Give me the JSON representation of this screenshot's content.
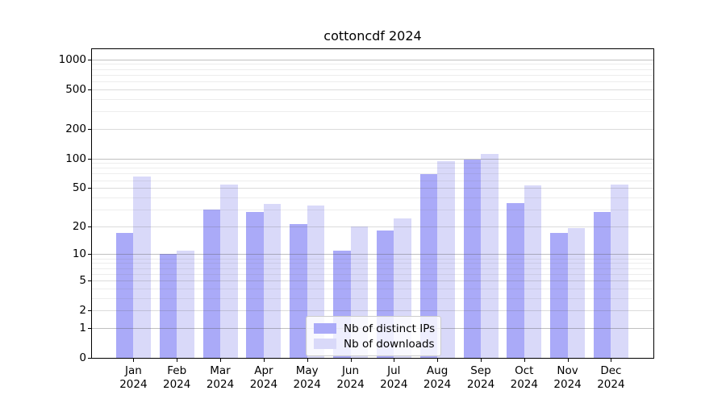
{
  "figure": {
    "title": "cottoncdf 2024"
  },
  "chart_data": {
    "type": "bar",
    "title": "cottoncdf 2024",
    "months": [
      "Jan",
      "Feb",
      "Mar",
      "Apr",
      "May",
      "Jun",
      "Jul",
      "Aug",
      "Sep",
      "Oct",
      "Nov",
      "Dec"
    ],
    "year": "2024",
    "categories": [
      "Jan 2024",
      "Feb 2024",
      "Mar 2024",
      "Apr 2024",
      "May 2024",
      "Jun 2024",
      "Jul 2024",
      "Aug 2024",
      "Sep 2024",
      "Oct 2024",
      "Nov 2024",
      "Dec 2024"
    ],
    "series": [
      {
        "name": "Nb of distinct IPs",
        "color": "#aaaaf8",
        "values": [
          17,
          10,
          30,
          28,
          21,
          11,
          18,
          69,
          98,
          35,
          17,
          28
        ]
      },
      {
        "name": "Nb of downloads",
        "color": "#d9d9f9",
        "values": [
          65,
          11,
          54,
          34,
          33,
          20,
          24,
          94,
          112,
          53,
          19,
          54
        ]
      }
    ],
    "xlabel": "",
    "ylabel": "",
    "yscale": "log1p",
    "ylim": [
      0,
      1265
    ],
    "yticks_labeled": [
      0,
      1,
      2,
      5,
      10,
      20,
      50,
      100,
      200,
      500,
      1000
    ],
    "yticks_decade": [
      1,
      10,
      100,
      1000
    ],
    "yticks_mid": [
      2,
      5,
      20,
      50,
      200,
      500
    ],
    "yticks_minor": [
      3,
      4,
      6,
      7,
      8,
      9,
      30,
      40,
      60,
      70,
      80,
      90,
      300,
      400,
      600,
      700,
      800,
      900
    ],
    "grid": true,
    "grid_over_bars": true,
    "legend": {
      "position": "lower center",
      "items": [
        {
          "label": "Nb of distinct IPs",
          "color": "#aaaaf8"
        },
        {
          "label": "Nb of downloads",
          "color": "#d9d9f9"
        }
      ]
    }
  }
}
